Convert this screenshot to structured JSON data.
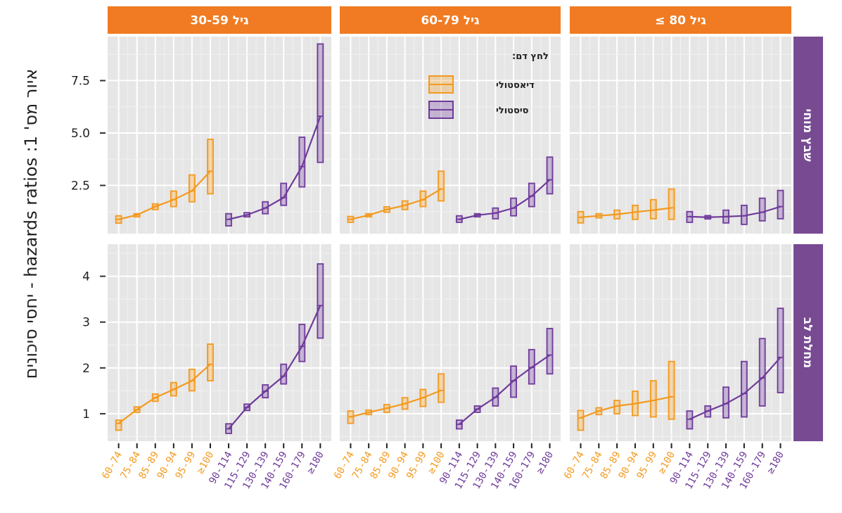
{
  "chart_data": {
    "type": "line",
    "subtype": "faceted line with confidence-interval boxes",
    "title": "",
    "ylabel": "איור מס' 1: hazards ratios - יחסי סיכונים",
    "xlabel": "",
    "categories": [
      "60-74",
      "75-84",
      "85-89",
      "90-94",
      "95-99",
      "≥100",
      "90-114",
      "115-129",
      "130-139",
      "140-159",
      "160-179",
      "≥180"
    ],
    "category_series": [
      "diastolic",
      "diastolic",
      "diastolic",
      "diastolic",
      "diastolic",
      "diastolic",
      "systolic",
      "systolic",
      "systolic",
      "systolic",
      "systolic",
      "systolic"
    ],
    "columns": [
      "גיל 30-59",
      "גיל 60-79",
      "גיל 80 ≥"
    ],
    "rows": [
      "שבץ מוחי",
      "מחלת לב"
    ],
    "row_axes": [
      {
        "ylim": [
          0.2,
          9.6
        ],
        "ticks": [
          2.5,
          5.0,
          7.5
        ],
        "tick_labels": [
          "2.5",
          "5.0",
          "7.5"
        ]
      },
      {
        "ylim": [
          0.4,
          4.7
        ],
        "ticks": [
          1,
          2,
          3,
          4
        ],
        "tick_labels": [
          "1",
          "2",
          "3",
          "4"
        ]
      }
    ],
    "legend": {
      "title": "לחץ דם:",
      "placement": "top-center panel, upper right",
      "entries": [
        {
          "key": "diastolic",
          "label": "דיאסטולי",
          "color": "#F39A1F"
        },
        {
          "key": "systolic",
          "label": "סיסטולי",
          "color": "#6F3B9A"
        }
      ]
    },
    "strip_colors": {
      "column": "#F07B22",
      "row": "#774A92"
    },
    "panel_background": "#E6E6E6",
    "grid": true,
    "panels": [
      {
        "row": 0,
        "col": 0,
        "series": [
          {
            "key": "diastolic",
            "values": [
              0.88,
              1.09,
              1.49,
              1.82,
              2.24,
              3.18
            ],
            "lower": [
              0.7,
              1.0,
              1.35,
              1.49,
              1.72,
              2.1
            ],
            "upper": [
              1.05,
              1.15,
              1.62,
              2.23,
              3.0,
              4.7
            ]
          },
          {
            "key": "systolic",
            "values": [
              0.88,
              1.09,
              1.42,
              1.92,
              3.4,
              5.8
            ],
            "lower": [
              0.57,
              1.0,
              1.15,
              1.55,
              2.43,
              3.6
            ],
            "upper": [
              1.15,
              1.2,
              1.72,
              2.6,
              4.8,
              9.25
            ]
          }
        ]
      },
      {
        "row": 0,
        "col": 1,
        "series": [
          {
            "key": "diastolic",
            "values": [
              0.88,
              1.08,
              1.35,
              1.55,
              1.82,
              2.33
            ],
            "lower": [
              0.74,
              1.0,
              1.22,
              1.35,
              1.49,
              1.76
            ],
            "upper": [
              1.02,
              1.15,
              1.48,
              1.76,
              2.23,
              3.18
            ]
          },
          {
            "key": "systolic",
            "values": [
              0.88,
              1.08,
              1.18,
              1.42,
              1.99,
              2.77
            ],
            "lower": [
              0.74,
              1.0,
              0.91,
              1.05,
              1.49,
              2.1
            ],
            "upper": [
              1.05,
              1.15,
              1.42,
              1.89,
              2.6,
              3.85
            ]
          }
        ]
      },
      {
        "row": 0,
        "col": 2,
        "series": [
          {
            "key": "diastolic",
            "values": [
              0.98,
              1.05,
              1.12,
              1.23,
              1.32,
              1.43
            ],
            "lower": [
              0.71,
              0.95,
              0.91,
              0.88,
              0.91,
              0.88
            ],
            "upper": [
              1.25,
              1.15,
              1.32,
              1.55,
              1.82,
              2.33
            ]
          },
          {
            "key": "systolic",
            "values": [
              1.01,
              0.98,
              1.01,
              1.05,
              1.22,
              1.49
            ],
            "lower": [
              0.74,
              0.9,
              0.71,
              0.64,
              0.81,
              0.91
            ],
            "upper": [
              1.25,
              1.06,
              1.32,
              1.55,
              1.89,
              2.26
            ]
          }
        ]
      },
      {
        "row": 1,
        "col": 0,
        "series": [
          {
            "key": "diastolic",
            "values": [
              0.79,
              1.09,
              1.35,
              1.53,
              1.72,
              2.08
            ],
            "lower": [
              0.64,
              1.03,
              1.27,
              1.39,
              1.5,
              1.72
            ],
            "upper": [
              0.86,
              1.15,
              1.43,
              1.68,
              1.97,
              2.52
            ]
          },
          {
            "key": "systolic",
            "values": [
              0.67,
              1.14,
              1.49,
              1.82,
              2.47,
              3.36
            ],
            "lower": [
              0.57,
              1.07,
              1.35,
              1.65,
              2.14,
              2.65
            ],
            "upper": [
              0.78,
              1.21,
              1.63,
              2.08,
              2.95,
              4.27
            ]
          }
        ]
      },
      {
        "row": 1,
        "col": 1,
        "series": [
          {
            "key": "diastolic",
            "values": [
              0.93,
              1.03,
              1.12,
              1.22,
              1.35,
              1.51
            ],
            "lower": [
              0.79,
              0.98,
              1.03,
              1.1,
              1.16,
              1.25
            ],
            "upper": [
              1.06,
              1.08,
              1.2,
              1.35,
              1.53,
              1.87
            ]
          },
          {
            "key": "systolic",
            "values": [
              0.77,
              1.1,
              1.36,
              1.72,
              2.01,
              2.28
            ],
            "lower": [
              0.67,
              1.03,
              1.17,
              1.36,
              1.65,
              1.87
            ],
            "upper": [
              0.86,
              1.17,
              1.56,
              2.04,
              2.4,
              2.86
            ]
          }
        ]
      },
      {
        "row": 1,
        "col": 2,
        "series": [
          {
            "key": "diastolic",
            "values": [
              0.91,
              1.06,
              1.17,
              1.22,
              1.29,
              1.37
            ],
            "lower": [
              0.64,
              0.98,
              1.0,
              0.96,
              0.93,
              0.88
            ],
            "upper": [
              1.07,
              1.13,
              1.29,
              1.49,
              1.72,
              2.14
            ]
          },
          {
            "key": "systolic",
            "values": [
              0.88,
              1.06,
              1.22,
              1.44,
              1.78,
              2.23
            ],
            "lower": [
              0.67,
              0.93,
              0.91,
              0.93,
              1.17,
              1.46
            ],
            "upper": [
              1.06,
              1.17,
              1.58,
              2.14,
              2.64,
              3.3
            ]
          }
        ]
      }
    ]
  }
}
